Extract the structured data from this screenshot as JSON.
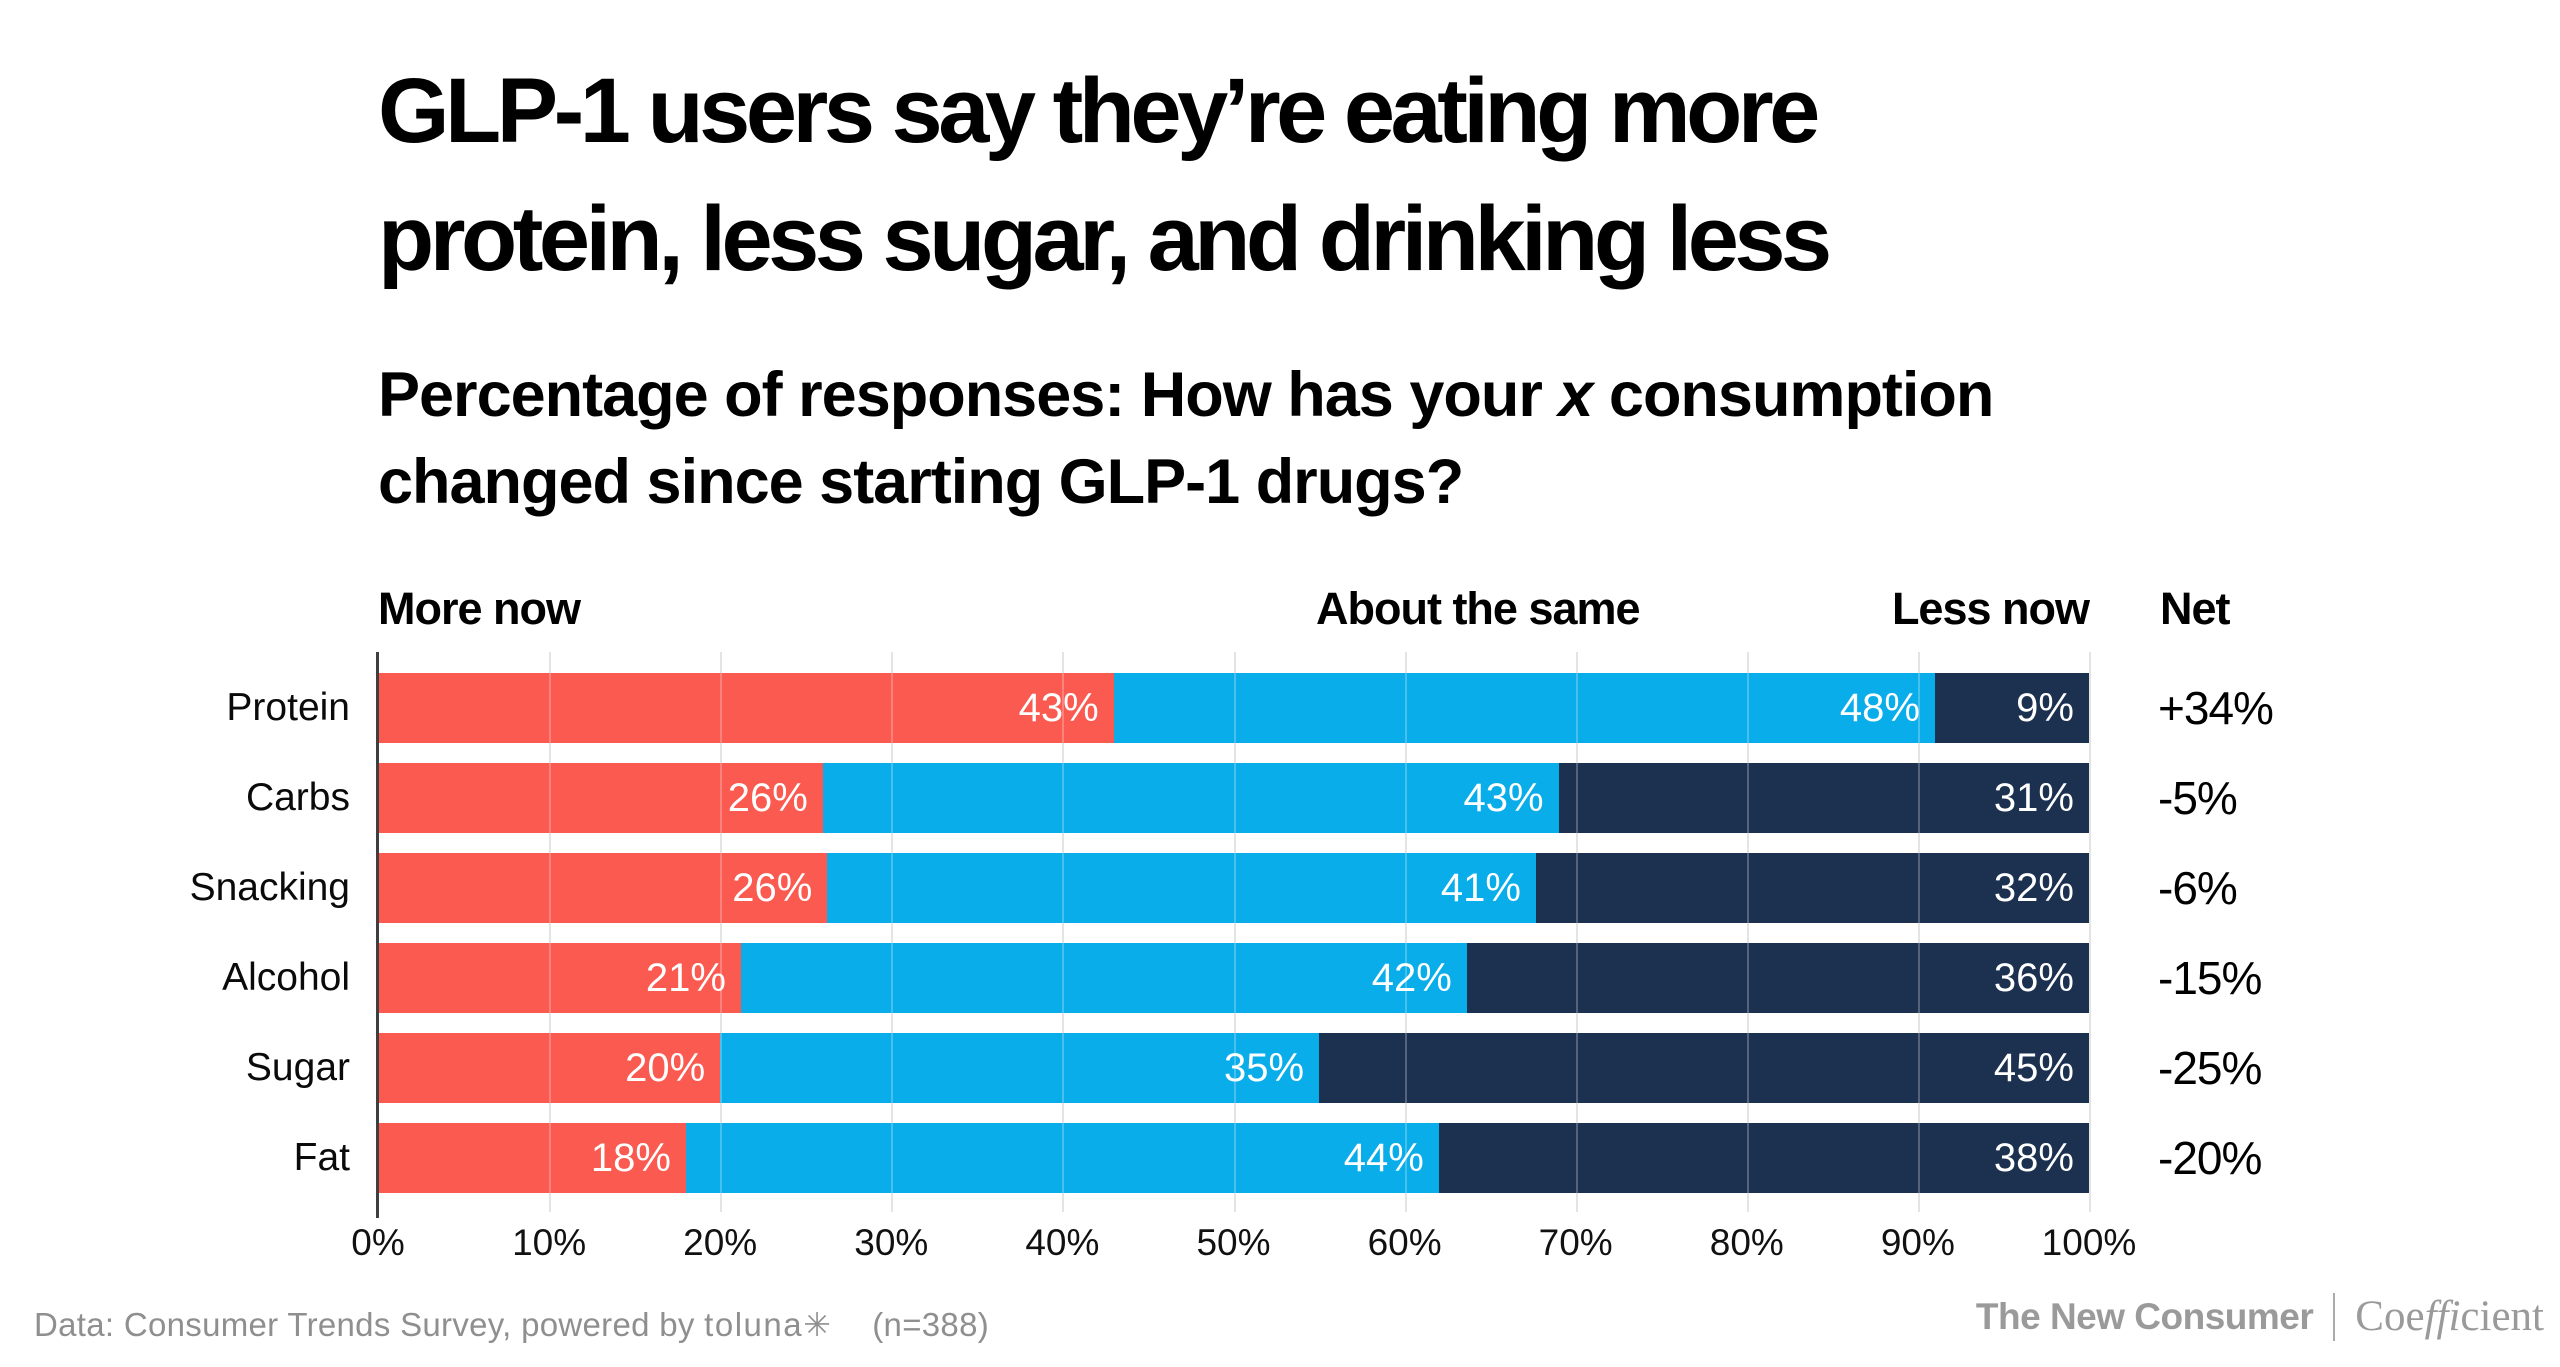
{
  "title": {
    "line1": "GLP-1 users say they’re eating more",
    "line2": "protein, less sugar, and drinking less"
  },
  "subtitle": {
    "line1_before": "Percentage of responses: How has your ",
    "emphasis": "x",
    "line1_after": " consumption",
    "line2": "changed since starting GLP-1 drugs?"
  },
  "column_headers": {
    "more": "More now",
    "same": "About the same",
    "less": "Less now",
    "net": "Net"
  },
  "chart_data": {
    "type": "bar",
    "stacked": true,
    "orientation": "horizontal",
    "unit": "%",
    "title": "GLP-1 users say they’re eating more protein, less sugar, and drinking less",
    "subtitle": "Percentage of responses: How has your x consumption changed since starting GLP-1 drugs?",
    "categories": [
      "Protein",
      "Carbs",
      "Snacking",
      "Alcohol",
      "Sugar",
      "Fat"
    ],
    "series": [
      {
        "name": "More now",
        "color": "#FA5A50",
        "values": [
          43,
          26,
          26,
          21,
          20,
          18
        ]
      },
      {
        "name": "About the same",
        "color": "#09ADE9",
        "values": [
          48,
          43,
          41,
          42,
          35,
          44
        ]
      },
      {
        "name": "Less now",
        "color": "#1C3050",
        "values": [
          9,
          31,
          32,
          36,
          45,
          38
        ]
      }
    ],
    "net_label": "Net",
    "net_values": [
      "+34%",
      "-5%",
      "-6%",
      "-15%",
      "-25%",
      "-20%"
    ],
    "x_ticks": [
      "0%",
      "10%",
      "20%",
      "30%",
      "40%",
      "50%",
      "60%",
      "70%",
      "80%",
      "90%",
      "100%"
    ],
    "xlim": [
      0,
      100
    ],
    "grid": true,
    "gridline_color": "#dbdbdb",
    "legend_position": "top"
  },
  "footer": {
    "source_prefix": "Data: Consumer Trends Survey, powered by ",
    "source_logo": "toluna",
    "source_logo_mark": "✳",
    "sample": "(n=388)",
    "brand_left": "The New Consumer",
    "brand_right_parts": {
      "start": "Coe",
      "lig": "ffi",
      "end": "cient"
    }
  }
}
